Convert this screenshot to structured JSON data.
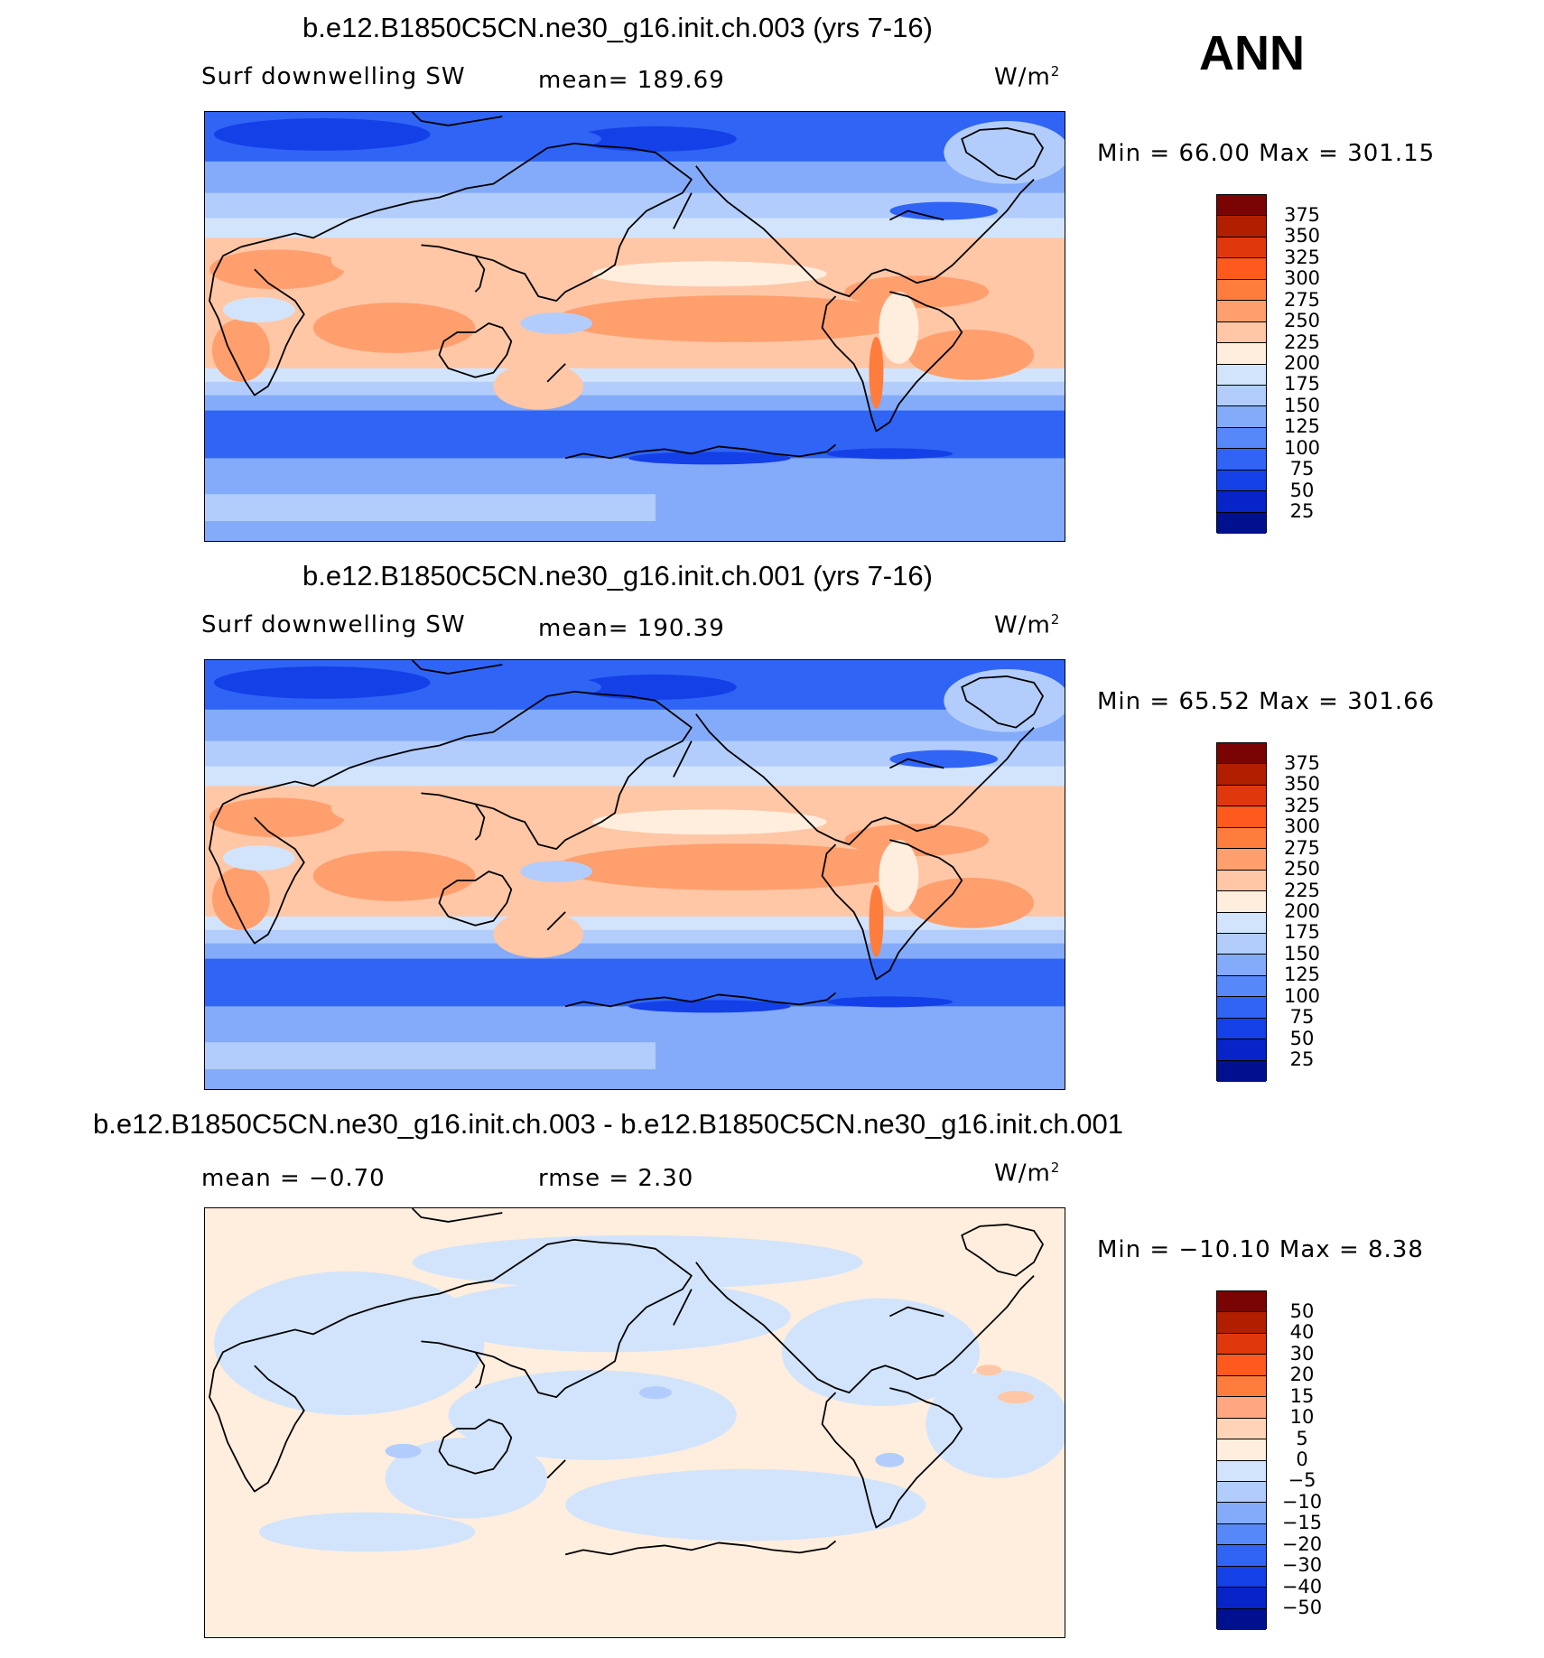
{
  "corner_label": "ANN",
  "colors": {
    "abs_palette": [
      "#7a0403",
      "#b11f00",
      "#e0380d",
      "#ff5a1e",
      "#ff7d3c",
      "#ff9f6e",
      "#ffc7a6",
      "#ffeede",
      "#d2e4fb",
      "#b2cdfb",
      "#84aafa",
      "#5688fa",
      "#2f64f5",
      "#1440e8",
      "#0624c7",
      "#00108f"
    ],
    "diff_palette": [
      "#7a0403",
      "#b11f00",
      "#e0380d",
      "#ff5a1e",
      "#ff7d3c",
      "#ffa780",
      "#ffd3b8",
      "#ffeede",
      "#d2e4fb",
      "#b2cdfb",
      "#84aafa",
      "#5688fa",
      "#2f64f5",
      "#1440e8",
      "#0624c7",
      "#00108f"
    ]
  },
  "panels": [
    {
      "title": "b.e12.B1850C5CN.ne30_g16.init.ch.003 (yrs 7-16)",
      "left_label": "Surf downwelling SW",
      "center_label": "mean= 189.69",
      "units_base": "W/m",
      "units_exp": "2",
      "minmax": "Min =   66.00 Max = 301.15",
      "colorbar_labels": [
        "375",
        "350",
        "325",
        "300",
        "275",
        "250",
        "225",
        "200",
        "175",
        "150",
        "125",
        "100",
        "75",
        "50",
        "25"
      ],
      "palette": "abs"
    },
    {
      "title": "b.e12.B1850C5CN.ne30_g16.init.ch.001 (yrs 7-16)",
      "left_label": "Surf downwelling SW",
      "center_label": "mean= 190.39",
      "units_base": "W/m",
      "units_exp": "2",
      "minmax": "Min =   65.52 Max = 301.66",
      "colorbar_labels": [
        "375",
        "350",
        "325",
        "300",
        "275",
        "250",
        "225",
        "200",
        "175",
        "150",
        "125",
        "100",
        "75",
        "50",
        "25"
      ],
      "palette": "abs"
    },
    {
      "title": "b.e12.B1850C5CN.ne30_g16.init.ch.003 - b.e12.B1850C5CN.ne30_g16.init.ch.001",
      "left_label": "mean =   −0.70",
      "center_label": "rmse =    2.30",
      "units_base": "W/m",
      "units_exp": "2",
      "minmax": "Min = −10.10 Max =    8.38",
      "colorbar_labels": [
        "50",
        "40",
        "30",
        "20",
        "15",
        "10",
        "5",
        "0",
        "−5",
        "−10",
        "−15",
        "−20",
        "−30",
        "−40",
        "−50"
      ],
      "palette": "diff"
    }
  ]
}
